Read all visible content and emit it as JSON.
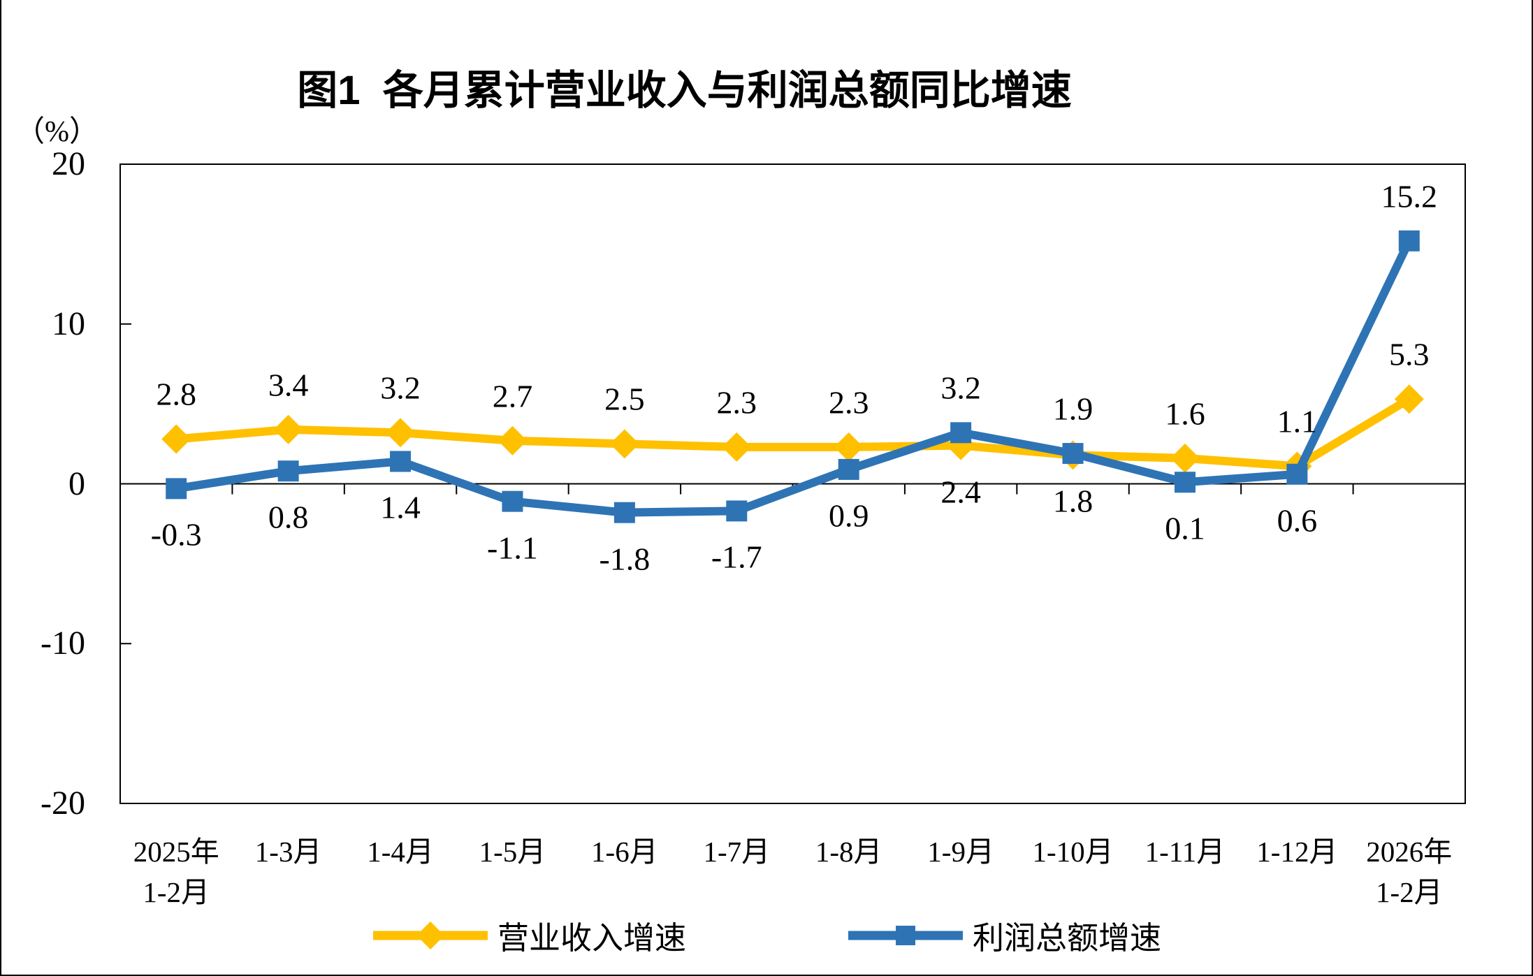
{
  "chart_data": {
    "type": "line",
    "title": "图1  各月累计营业收入与利润总额同比增速",
    "y_axis": {
      "unit": "（%）",
      "ticks": [
        20,
        10,
        0,
        -10,
        -20
      ],
      "ylim": [
        -20,
        20
      ]
    },
    "categories": [
      "2025年\n1-2月",
      "1-3月",
      "1-4月",
      "1-5月",
      "1-6月",
      "1-7月",
      "1-8月",
      "1-9月",
      "1-10月",
      "1-11月",
      "1-12月",
      "2026年\n1-2月"
    ],
    "series": [
      {
        "name": "营业收入增速",
        "color": "#FFC000",
        "marker": "diamond",
        "values": [
          2.8,
          3.4,
          3.2,
          2.7,
          2.5,
          2.3,
          2.3,
          2.4,
          1.8,
          1.6,
          1.1,
          5.3
        ]
      },
      {
        "name": "利润总额增速",
        "color": "#2E74B5",
        "marker": "square",
        "values": [
          -0.3,
          0.8,
          1.4,
          -1.1,
          -1.8,
          -1.7,
          0.9,
          3.2,
          1.9,
          0.1,
          0.6,
          15.2
        ]
      }
    ],
    "legend_position": "bottom",
    "data_labels": true,
    "grid": false,
    "axis_color": "#000000"
  }
}
